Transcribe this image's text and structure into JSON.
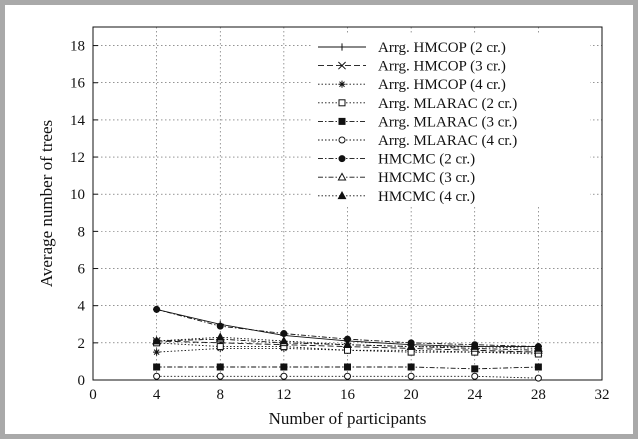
{
  "chart_data": {
    "type": "line",
    "title": "",
    "xlabel": "Number of participants",
    "ylabel": "Average number of trees",
    "xlim": [
      0,
      32
    ],
    "ylim": [
      0,
      19
    ],
    "xticks": [
      0,
      4,
      8,
      12,
      16,
      20,
      24,
      28,
      32
    ],
    "yticks": [
      0,
      2,
      4,
      6,
      8,
      10,
      12,
      14,
      16,
      18
    ],
    "grid": true,
    "legend_position": "top-right",
    "x": [
      4,
      8,
      12,
      16,
      20,
      24,
      28
    ],
    "series": [
      {
        "name": "Arrg. HMCOP (2 cr.)",
        "marker": "plus",
        "dash": "solid",
        "values": [
          3.8,
          3.0,
          2.4,
          2.1,
          1.9,
          1.8,
          1.8
        ]
      },
      {
        "name": "Arrg. HMCOP (3 cr.)",
        "marker": "x",
        "dash": "dashed",
        "values": [
          2.1,
          2.0,
          1.9,
          1.8,
          1.7,
          1.6,
          1.5
        ]
      },
      {
        "name": "Arrg. HMCOP (4 cr.)",
        "marker": "star",
        "dash": "dotted",
        "values": [
          1.5,
          1.7,
          1.7,
          1.6,
          1.6,
          1.5,
          1.5
        ]
      },
      {
        "name": "Arrg. MLARAC (2 cr.)",
        "marker": "square-open",
        "dash": "dotted",
        "values": [
          2.0,
          1.8,
          1.8,
          1.6,
          1.5,
          1.5,
          1.4
        ]
      },
      {
        "name": "Arrg. MLARAC (3 cr.)",
        "marker": "square-filled",
        "dash": "dashdot",
        "values": [
          0.7,
          0.7,
          0.7,
          0.7,
          0.7,
          0.6,
          0.7
        ]
      },
      {
        "name": "Arrg. MLARAC (4 cr.)",
        "marker": "circle-open",
        "dash": "dotted",
        "values": [
          0.2,
          0.2,
          0.2,
          0.2,
          0.2,
          0.2,
          0.1
        ]
      },
      {
        "name": "HMCMC (2 cr.)",
        "marker": "circle-filled",
        "dash": "dashdot",
        "values": [
          3.8,
          2.9,
          2.5,
          2.2,
          2.0,
          1.9,
          1.8
        ]
      },
      {
        "name": "HMCMC (3 cr.)",
        "marker": "triangle-open",
        "dash": "dashdot",
        "values": [
          2.1,
          2.2,
          2.0,
          1.9,
          1.8,
          1.7,
          1.6
        ]
      },
      {
        "name": "HMCMC (4 cr.)",
        "marker": "triangle-filled",
        "dash": "dotted",
        "values": [
          2.1,
          2.3,
          2.1,
          1.9,
          1.8,
          1.8,
          1.7
        ]
      }
    ]
  }
}
